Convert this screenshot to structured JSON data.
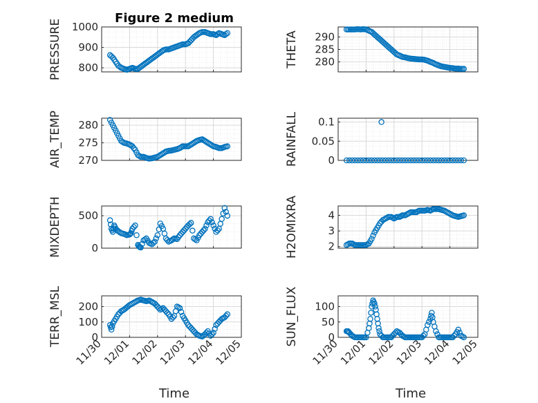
{
  "figure": {
    "title": "Figure 2 medium",
    "x_axis_label": "Time",
    "date_ticks": [
      "11/30",
      "12/01",
      "12/02",
      "12/03",
      "12/04",
      "12/05"
    ],
    "marker_color": "#0072bd"
  },
  "chart_data": [
    {
      "type": "scatter",
      "panel": "top-left",
      "ylabel": "PRESSURE",
      "ylim": [
        780,
        1000
      ],
      "yticks": [
        800,
        900,
        1000
      ],
      "x_unit": "days since 11/30",
      "xlim": [
        0,
        5
      ],
      "x": [
        0.3,
        0.4,
        0.5,
        0.6,
        0.7,
        0.8,
        0.9,
        1.0,
        1.1,
        1.2,
        1.3,
        1.4,
        1.5,
        1.6,
        1.7,
        1.8,
        1.9,
        2.0,
        2.1,
        2.2,
        2.3,
        2.4,
        2.5,
        2.6,
        2.7,
        2.8,
        2.9,
        3.0,
        3.1,
        3.2,
        3.3,
        3.4,
        3.5,
        3.6,
        3.7,
        3.8,
        3.9,
        4.0,
        4.1,
        4.2,
        4.3,
        4.4,
        4.5
      ],
      "y": [
        862,
        850,
        830,
        810,
        800,
        795,
        790,
        795,
        800,
        795,
        795,
        805,
        815,
        825,
        835,
        845,
        855,
        865,
        875,
        885,
        890,
        890,
        895,
        900,
        905,
        910,
        915,
        915,
        920,
        935,
        950,
        960,
        970,
        975,
        975,
        970,
        965,
        965,
        960,
        970,
        965,
        960,
        970
      ],
      "series": [
        {
          "name": "PRESSURE",
          "marker": "circle"
        }
      ]
    },
    {
      "type": "scatter",
      "panel": "top-right",
      "ylabel": "THETA",
      "ylim": [
        276,
        294
      ],
      "yticks": [
        280,
        285,
        290
      ],
      "xlim": [
        0,
        5
      ],
      "x": [
        0.3,
        0.4,
        0.5,
        0.6,
        0.7,
        0.8,
        0.9,
        1.0,
        1.1,
        1.2,
        1.3,
        1.4,
        1.5,
        1.6,
        1.7,
        1.8,
        1.9,
        2.0,
        2.1,
        2.2,
        2.3,
        2.4,
        2.5,
        2.6,
        2.7,
        2.8,
        2.9,
        3.0,
        3.1,
        3.2,
        3.3,
        3.4,
        3.5,
        3.6,
        3.7,
        3.8,
        3.9,
        4.0,
        4.1,
        4.2,
        4.3,
        4.4,
        4.5
      ],
      "y": [
        293,
        293,
        293,
        293,
        293.1,
        293,
        293.1,
        293,
        292.5,
        292,
        291,
        290,
        289,
        288,
        287,
        286,
        285,
        284,
        283,
        282.5,
        282,
        281.8,
        281.5,
        281.3,
        281.2,
        281.1,
        281,
        281,
        280.8,
        280.5,
        280,
        279.6,
        279,
        278.6,
        278.2,
        278,
        277.8,
        277.6,
        277.5,
        277.3,
        277.3,
        277.2,
        277.2
      ],
      "series": [
        {
          "name": "THETA",
          "marker": "circle"
        }
      ]
    },
    {
      "type": "scatter",
      "panel": "row2-left",
      "ylabel": "AIR_TEMP",
      "ylim": [
        270,
        282
      ],
      "yticks": [
        270,
        275,
        280
      ],
      "xlim": [
        0,
        5
      ],
      "x": [
        0.3,
        0.4,
        0.5,
        0.6,
        0.7,
        0.8,
        0.9,
        1.0,
        1.1,
        1.2,
        1.3,
        1.4,
        1.5,
        1.6,
        1.7,
        1.8,
        1.9,
        2.0,
        2.1,
        2.2,
        2.3,
        2.4,
        2.5,
        2.6,
        2.7,
        2.8,
        2.9,
        3.0,
        3.1,
        3.2,
        3.3,
        3.4,
        3.5,
        3.6,
        3.7,
        3.8,
        3.9,
        4.0,
        4.1,
        4.2,
        4.3,
        4.4,
        4.5
      ],
      "y": [
        281.5,
        280,
        278.5,
        277,
        275.5,
        275,
        274.8,
        274.5,
        274,
        273,
        271.5,
        271,
        271,
        270.7,
        270.5,
        270.6,
        270.8,
        271,
        271.5,
        272,
        272.5,
        272.7,
        272.8,
        273,
        273.2,
        273.5,
        274,
        274,
        274,
        274.5,
        275,
        275.5,
        275.8,
        276,
        275.5,
        275,
        274.5,
        274,
        273.8,
        273.5,
        273.5,
        273.8,
        274
      ],
      "series": [
        {
          "name": "AIR_TEMP",
          "marker": "circle"
        }
      ]
    },
    {
      "type": "scatter",
      "panel": "row2-right",
      "ylabel": "RAINFALL",
      "ylim": [
        0,
        0.11
      ],
      "yticks": [
        0,
        0.05,
        0.1
      ],
      "xlim": [
        0,
        5
      ],
      "x": [
        0.3,
        0.4,
        0.5,
        0.6,
        0.7,
        0.8,
        0.9,
        1.0,
        1.1,
        1.2,
        1.3,
        1.4,
        1.5,
        1.6,
        1.7,
        1.8,
        1.9,
        2.0,
        2.1,
        2.2,
        2.3,
        2.4,
        2.5,
        2.6,
        2.7,
        2.8,
        2.9,
        3.0,
        3.1,
        3.2,
        3.3,
        3.4,
        3.5,
        3.6,
        3.7,
        3.8,
        3.9,
        4.0,
        4.1,
        4.2,
        4.3,
        4.4,
        4.5,
        1.55
      ],
      "y": [
        0,
        0,
        0,
        0,
        0,
        0,
        0,
        0,
        0,
        0,
        0,
        0,
        0,
        0,
        0,
        0,
        0,
        0,
        0,
        0,
        0,
        0,
        0,
        0,
        0,
        0,
        0,
        0,
        0,
        0,
        0,
        0,
        0,
        0,
        0,
        0,
        0,
        0,
        0,
        0,
        0,
        0,
        0,
        0.1
      ],
      "series": [
        {
          "name": "RAINFALL",
          "marker": "circle"
        }
      ]
    },
    {
      "type": "scatter",
      "panel": "row3-left",
      "ylabel": "MIXDEPTH",
      "ylim": [
        0,
        650
      ],
      "yticks": [
        0,
        500
      ],
      "xlim": [
        0,
        5
      ],
      "x": [
        0.3,
        0.35,
        0.4,
        0.45,
        0.5,
        0.6,
        0.7,
        0.8,
        0.9,
        1.0,
        1.05,
        1.1,
        1.2,
        1.3,
        1.35,
        1.4,
        1.5,
        1.6,
        1.7,
        1.8,
        1.9,
        2.0,
        2.1,
        2.2,
        2.3,
        2.4,
        2.5,
        2.6,
        2.7,
        2.8,
        2.9,
        3.0,
        3.1,
        3.2,
        3.3,
        3.4,
        3.5,
        3.6,
        3.7,
        3.8,
        3.9,
        4.0,
        4.1,
        4.2,
        4.3,
        4.4,
        4.5
      ],
      "y": [
        430,
        300,
        250,
        350,
        300,
        260,
        230,
        220,
        200,
        210,
        230,
        300,
        350,
        50,
        20,
        10,
        120,
        150,
        80,
        60,
        100,
        200,
        380,
        300,
        150,
        100,
        120,
        150,
        140,
        200,
        250,
        300,
        350,
        390,
        150,
        120,
        200,
        250,
        300,
        400,
        450,
        350,
        250,
        300,
        450,
        620,
        500
      ],
      "series": [
        {
          "name": "MIXDEPTH",
          "marker": "circle"
        }
      ]
    },
    {
      "type": "scatter",
      "panel": "row3-right",
      "ylabel": "H2OMIXRA",
      "ylim": [
        1.9,
        4.6
      ],
      "yticks": [
        2,
        3,
        4
      ],
      "xlim": [
        0,
        5
      ],
      "x": [
        0.3,
        0.4,
        0.5,
        0.6,
        0.7,
        0.8,
        0.9,
        1.0,
        1.1,
        1.2,
        1.3,
        1.4,
        1.5,
        1.6,
        1.7,
        1.8,
        1.9,
        2.0,
        2.1,
        2.2,
        2.3,
        2.4,
        2.5,
        2.6,
        2.7,
        2.8,
        2.9,
        3.0,
        3.1,
        3.2,
        3.3,
        3.4,
        3.5,
        3.6,
        3.7,
        3.8,
        3.9,
        4.0,
        4.1,
        4.2,
        4.3,
        4.4,
        4.5
      ],
      "y": [
        2.1,
        2.2,
        2.2,
        2.1,
        2.1,
        2.1,
        2.1,
        2.1,
        2.2,
        2.5,
        2.9,
        3.2,
        3.5,
        3.7,
        3.8,
        3.9,
        3.9,
        3.8,
        3.9,
        3.9,
        4.0,
        4.0,
        4.1,
        4.2,
        4.2,
        4.2,
        4.3,
        4.3,
        4.3,
        4.35,
        4.3,
        4.4,
        4.4,
        4.4,
        4.35,
        4.3,
        4.2,
        4.1,
        4.0,
        3.95,
        3.9,
        3.95,
        4.0
      ],
      "series": [
        {
          "name": "H2OMIXRA",
          "marker": "circle"
        }
      ]
    },
    {
      "type": "scatter",
      "panel": "bottom-left",
      "ylabel": "TERR_MSL",
      "ylim": [
        0,
        270
      ],
      "yticks": [
        0,
        100,
        200
      ],
      "xlim": [
        0,
        5
      ],
      "x": [
        0.3,
        0.35,
        0.4,
        0.5,
        0.6,
        0.7,
        0.8,
        0.9,
        1.0,
        1.1,
        1.2,
        1.3,
        1.4,
        1.5,
        1.6,
        1.7,
        1.8,
        1.9,
        2.0,
        2.1,
        2.2,
        2.3,
        2.4,
        2.5,
        2.6,
        2.7,
        2.8,
        2.9,
        3.0,
        3.1,
        3.2,
        3.3,
        3.4,
        3.5,
        3.6,
        3.7,
        3.8,
        3.9,
        4.0,
        4.1,
        4.2,
        4.3,
        4.4,
        4.5
      ],
      "y": [
        80,
        50,
        90,
        120,
        150,
        170,
        180,
        195,
        210,
        220,
        230,
        240,
        245,
        240,
        235,
        240,
        230,
        220,
        200,
        180,
        190,
        170,
        150,
        120,
        140,
        200,
        190,
        140,
        110,
        80,
        60,
        40,
        20,
        10,
        5,
        20,
        40,
        10,
        30,
        80,
        100,
        120,
        130,
        150
      ],
      "series": [
        {
          "name": "TERR_MSL",
          "marker": "circle"
        }
      ]
    },
    {
      "type": "scatter",
      "panel": "bottom-right",
      "ylabel": "SUN_FLUX",
      "ylim": [
        0,
        135
      ],
      "yticks": [
        0,
        50,
        100
      ],
      "xlim": [
        0,
        5
      ],
      "x": [
        0.3,
        0.35,
        0.4,
        0.5,
        0.6,
        0.7,
        0.8,
        0.9,
        1.0,
        1.1,
        1.15,
        1.2,
        1.25,
        1.3,
        1.35,
        1.4,
        1.45,
        1.5,
        1.6,
        1.7,
        1.8,
        1.9,
        2.0,
        2.1,
        2.2,
        2.3,
        2.4,
        2.5,
        2.6,
        2.7,
        2.8,
        2.9,
        3.0,
        3.1,
        3.2,
        3.3,
        3.35,
        3.4,
        3.5,
        3.6,
        3.7,
        3.8,
        3.9,
        4.0,
        4.1,
        4.2,
        4.3,
        4.4,
        4.5
      ],
      "y": [
        20,
        20,
        15,
        5,
        0,
        0,
        0,
        0,
        0,
        30,
        60,
        100,
        120,
        110,
        90,
        60,
        30,
        10,
        0,
        0,
        0,
        0,
        10,
        20,
        15,
        5,
        0,
        0,
        0,
        0,
        0,
        0,
        0,
        10,
        40,
        60,
        80,
        50,
        20,
        0,
        0,
        0,
        0,
        0,
        0,
        10,
        25,
        5,
        0
      ],
      "series": [
        {
          "name": "SUN_FLUX",
          "marker": "circle"
        }
      ]
    }
  ]
}
